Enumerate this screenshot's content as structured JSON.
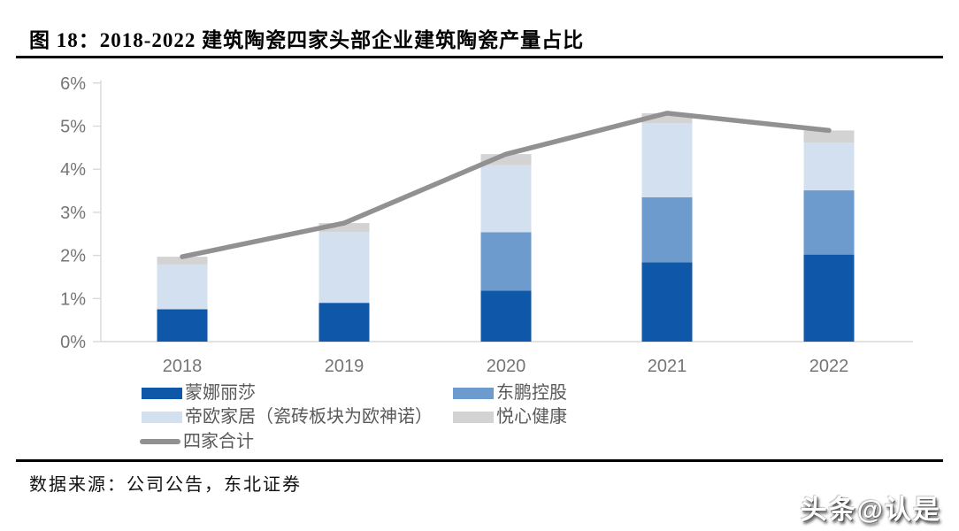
{
  "title": "图 18：2018-2022 建筑陶瓷四家头部企业建筑陶瓷产量占比",
  "chart_data": {
    "type": "bar",
    "subtype": "stacked-bar-with-line",
    "title": "2018-2022 建筑陶瓷四家头部企业建筑陶瓷产量占比",
    "categories": [
      "2018",
      "2019",
      "2020",
      "2021",
      "2022"
    ],
    "series": [
      {
        "name": "蒙娜丽莎",
        "color": "#0e57a9",
        "values": [
          0.75,
          0.9,
          1.18,
          1.84,
          2.02
        ]
      },
      {
        "name": "东鹏控股",
        "color": "#6d9bce",
        "values": [
          0,
          0,
          1.36,
          1.51,
          1.49
        ]
      },
      {
        "name": "帝欧家居（瓷砖板块为欧神诺）",
        "color": "#d3e0ef",
        "values": [
          1.04,
          1.64,
          1.55,
          1.72,
          1.11
        ]
      },
      {
        "name": "悦心健康",
        "color": "#d3d3d3",
        "values": [
          0.18,
          0.21,
          0.26,
          0.23,
          0.28
        ]
      }
    ],
    "line_series": {
      "name": "四家合计",
      "color": "#919191",
      "values": [
        1.97,
        2.75,
        4.35,
        5.3,
        4.9
      ]
    },
    "xlabel": "",
    "ylabel": "",
    "ylim": [
      0,
      6
    ],
    "yticks": [
      "0%",
      "1%",
      "2%",
      "3%",
      "4%",
      "5%",
      "6%"
    ],
    "grid": false,
    "legend_position": "bottom-left",
    "axis_color": "#d9d9d9",
    "tick_label_color": "#757575"
  },
  "footer": {
    "source": "数据来源：公司公告，东北证券",
    "watermark": "头条@认是"
  }
}
